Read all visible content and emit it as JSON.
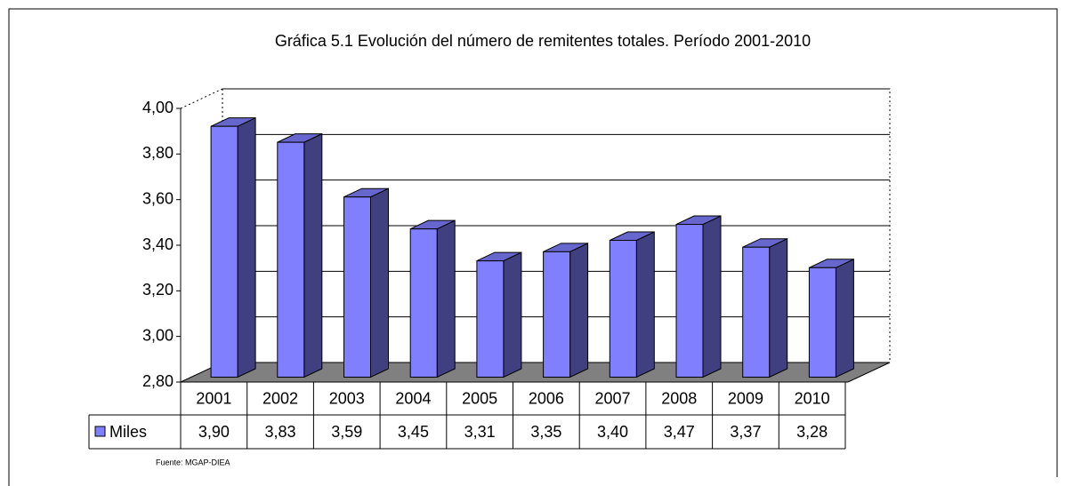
{
  "chart_data": {
    "type": "bar",
    "title": "Gráfica 5.1  Evolución del número de remitentes totales. Período 2001-2010",
    "categories": [
      "2001",
      "2002",
      "2003",
      "2004",
      "2005",
      "2006",
      "2007",
      "2008",
      "2009",
      "2010"
    ],
    "series": [
      {
        "name": "Miles",
        "color": "#8080ff",
        "values": [
          3.9,
          3.83,
          3.59,
          3.45,
          3.31,
          3.35,
          3.4,
          3.47,
          3.37,
          3.28
        ],
        "value_labels": [
          "3,90",
          "3,83",
          "3,59",
          "3,45",
          "3,31",
          "3,35",
          "3,40",
          "3,47",
          "3,37",
          "3,28"
        ]
      }
    ],
    "ylim": [
      2.8,
      4.0
    ],
    "yticks": [
      {
        "value": 2.8,
        "label": "2,80"
      },
      {
        "value": 3.0,
        "label": "3,00"
      },
      {
        "value": 3.2,
        "label": "3,20"
      },
      {
        "value": 3.4,
        "label": "3,40"
      },
      {
        "value": 3.6,
        "label": "3,60"
      },
      {
        "value": 3.8,
        "label": "3,80"
      },
      {
        "value": 4.0,
        "label": "4,00"
      }
    ],
    "grid": true,
    "source": "Fuente: MGAP-DIEA"
  }
}
